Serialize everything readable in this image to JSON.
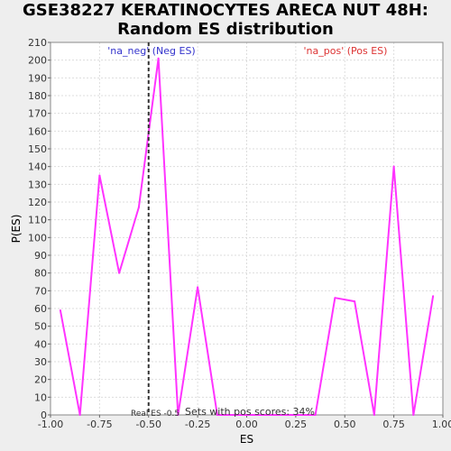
{
  "chart_data": {
    "type": "line",
    "title_lines": [
      "GSE38227 KERATINOCYTES ARECA NUT 48H:",
      "Random ES distribution"
    ],
    "xlabel": "ES",
    "ylabel": "P(ES)",
    "xlim": [
      -1.0,
      1.0
    ],
    "ylim": [
      0,
      210
    ],
    "x_ticks": [
      -1.0,
      -0.75,
      -0.5,
      -0.25,
      0.0,
      0.25,
      0.5,
      0.75,
      1.0
    ],
    "x_tick_labels": [
      "-1.00",
      "-0.75",
      "-0.50",
      "-0.25",
      "0.00",
      "0.25",
      "0.50",
      "0.75",
      "1.00"
    ],
    "y_ticks": [
      0,
      10,
      20,
      30,
      40,
      50,
      60,
      70,
      80,
      90,
      100,
      110,
      120,
      130,
      140,
      150,
      160,
      170,
      180,
      190,
      200,
      210
    ],
    "grid": true,
    "series": [
      {
        "color": "#ff33ff",
        "x": [
          -0.95,
          -0.85,
          -0.75,
          -0.65,
          -0.55,
          -0.45,
          -0.35,
          -0.25,
          -0.15,
          -0.05,
          0.05,
          0.15,
          0.25,
          0.35,
          0.45,
          0.55,
          0.65,
          0.75,
          0.85,
          0.95
        ],
        "y": [
          59,
          0,
          135,
          80,
          117,
          201,
          0,
          72,
          0,
          0,
          0,
          0,
          0,
          0,
          66,
          64,
          0,
          140,
          0,
          67
        ]
      }
    ],
    "real_es": -0.5,
    "annotations": {
      "neg_label": "'na_neg' (Neg ES)",
      "pos_label": "'na_pos' (Pos ES)",
      "real_es_label": "Real ES -0.5",
      "pos_scores_label": "Sets with pos scores: 34%"
    },
    "colors": {
      "neg": "#3333cc",
      "pos": "#dd3333",
      "line": "#ff33ff",
      "real_es_line": "#333333"
    }
  }
}
